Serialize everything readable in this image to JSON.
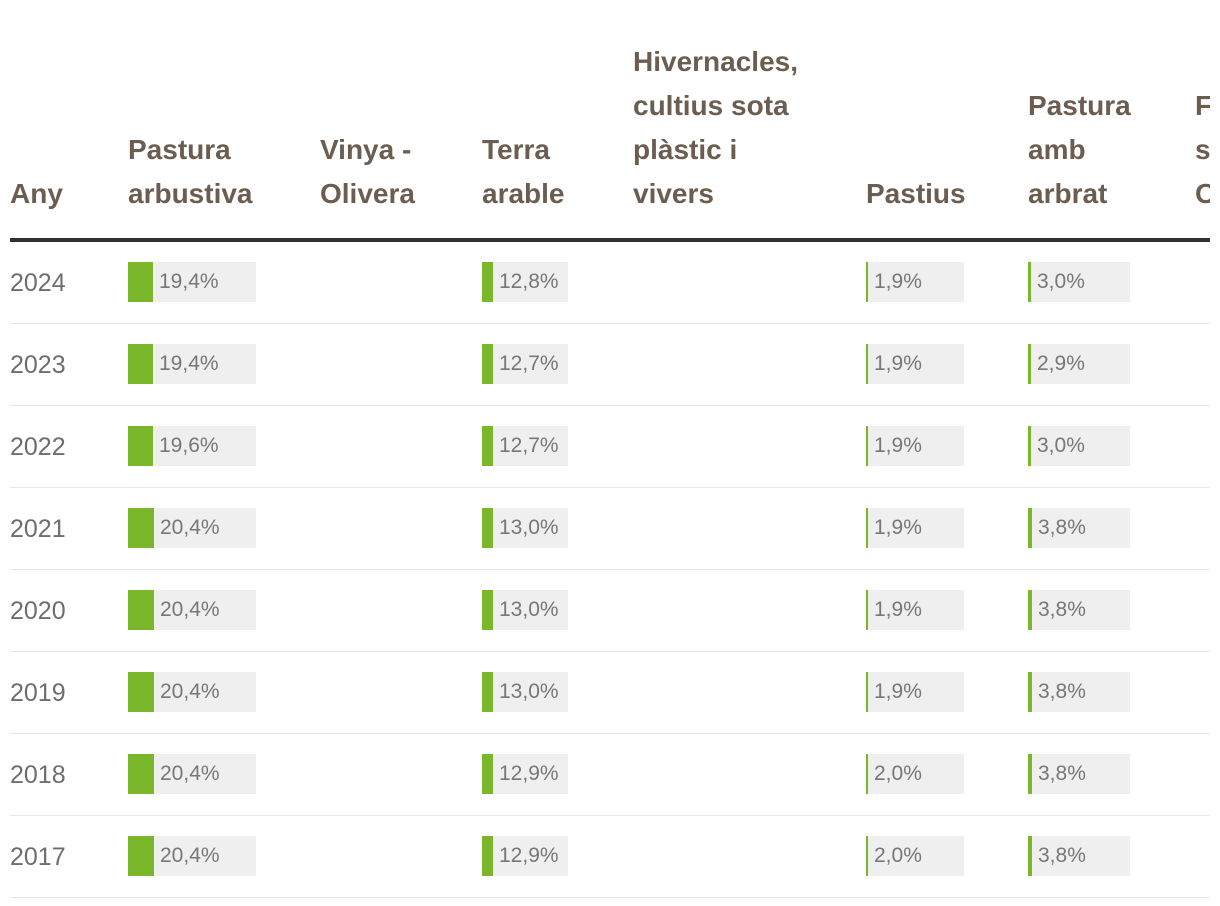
{
  "chart_data": {
    "type": "table",
    "columns": [
      "Any",
      "Pastura\narbustiva",
      "Vinya -\nOlivera",
      "Terra\narable",
      "Hivernacles,\ncultius sota\nplàstic i\nvivers",
      "Pastius",
      "Pastura\namb\narbrat",
      "F\ns\nO"
    ],
    "rows": [
      {
        "year": "2024",
        "values": [
          19.4,
          null,
          12.8,
          null,
          1.9,
          3.0
        ],
        "labels": [
          "19,4%",
          "",
          "12,8%",
          "",
          "1,9%",
          "3,0%"
        ]
      },
      {
        "year": "2023",
        "values": [
          19.4,
          null,
          12.7,
          null,
          1.9,
          2.9
        ],
        "labels": [
          "19,4%",
          "",
          "12,7%",
          "",
          "1,9%",
          "2,9%"
        ]
      },
      {
        "year": "2022",
        "values": [
          19.6,
          null,
          12.7,
          null,
          1.9,
          3.0
        ],
        "labels": [
          "19,6%",
          "",
          "12,7%",
          "",
          "1,9%",
          "3,0%"
        ]
      },
      {
        "year": "2021",
        "values": [
          20.4,
          null,
          13.0,
          null,
          1.9,
          3.8
        ],
        "labels": [
          "20,4%",
          "",
          "13,0%",
          "",
          "1,9%",
          "3,8%"
        ]
      },
      {
        "year": "2020",
        "values": [
          20.4,
          null,
          13.0,
          null,
          1.9,
          3.8
        ],
        "labels": [
          "20,4%",
          "",
          "13,0%",
          "",
          "1,9%",
          "3,8%"
        ]
      },
      {
        "year": "2019",
        "values": [
          20.4,
          null,
          13.0,
          null,
          1.9,
          3.8
        ],
        "labels": [
          "20,4%",
          "",
          "13,0%",
          "",
          "1,9%",
          "3,8%"
        ]
      },
      {
        "year": "2018",
        "values": [
          20.4,
          null,
          12.9,
          null,
          2.0,
          3.8
        ],
        "labels": [
          "20,4%",
          "",
          "12,9%",
          "",
          "2,0%",
          "3,8%"
        ]
      },
      {
        "year": "2017",
        "values": [
          20.4,
          null,
          12.9,
          null,
          2.0,
          3.8
        ],
        "labels": [
          "20,4%",
          "",
          "12,9%",
          "",
          "2,0%",
          "3,8%"
        ]
      }
    ],
    "bar_scale_max": 100,
    "grid": false
  },
  "colors": {
    "bar_fill": "#7ab72b",
    "bar_track": "#efefef",
    "header_text": "#6b5d50",
    "body_text": "#6e6e6e",
    "header_rule": "#333333",
    "row_rule": "#e6e6e6"
  }
}
